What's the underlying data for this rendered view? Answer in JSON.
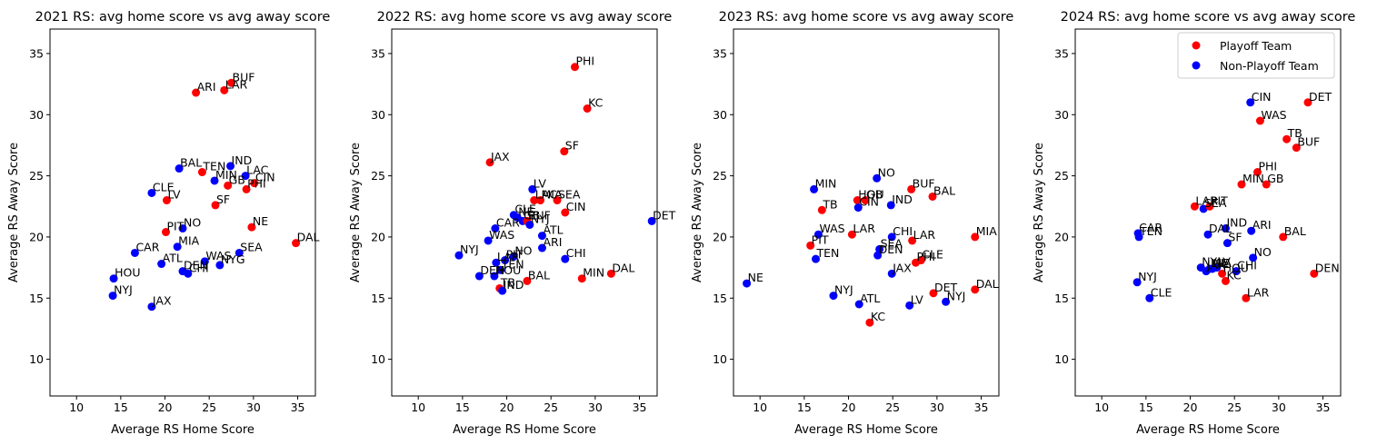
{
  "legend": {
    "playoff_label": "Playoff Team",
    "non_playoff_label": "Non-Playoff Team",
    "playoff_color": "#ff0000",
    "non_playoff_color": "#0000ff",
    "placement": "top-right of 2024 panel"
  },
  "chart_data": [
    {
      "type": "scatter",
      "title": "2021 RS: avg home score vs avg away score",
      "xlabel": "Average RS Home Score",
      "ylabel": "Average RS Away Score",
      "xlim": [
        7,
        37
      ],
      "ylim": [
        7,
        37
      ],
      "xticks": [
        10,
        15,
        20,
        25,
        30,
        35
      ],
      "yticks": [
        10,
        15,
        20,
        25,
        30,
        35
      ],
      "grid": false,
      "points": [
        {
          "team": "BUF",
          "x": 27.5,
          "y": 32.6,
          "playoff": true
        },
        {
          "team": "LAR",
          "x": 26.7,
          "y": 32.0,
          "playoff": true
        },
        {
          "team": "ARI",
          "x": 23.5,
          "y": 31.8,
          "playoff": true
        },
        {
          "team": "IND",
          "x": 27.4,
          "y": 25.8,
          "playoff": false
        },
        {
          "team": "BAL",
          "x": 21.6,
          "y": 25.6,
          "playoff": false
        },
        {
          "team": "TEN",
          "x": 24.2,
          "y": 25.3,
          "playoff": true
        },
        {
          "team": "LAC",
          "x": 29.1,
          "y": 25.0,
          "playoff": false
        },
        {
          "team": "MIN",
          "x": 25.6,
          "y": 24.6,
          "playoff": false
        },
        {
          "team": "CIN",
          "x": 30.1,
          "y": 24.4,
          "playoff": true
        },
        {
          "team": "GB",
          "x": 27.1,
          "y": 24.2,
          "playoff": true
        },
        {
          "team": "PHI",
          "x": 29.2,
          "y": 23.9,
          "playoff": true
        },
        {
          "team": "CLE",
          "x": 18.5,
          "y": 23.6,
          "playoff": false
        },
        {
          "team": "LV",
          "x": 20.2,
          "y": 23.0,
          "playoff": true
        },
        {
          "team": "SF",
          "x": 25.7,
          "y": 22.6,
          "playoff": true
        },
        {
          "team": "NO",
          "x": 22.0,
          "y": 20.7,
          "playoff": false
        },
        {
          "team": "NE",
          "x": 29.8,
          "y": 20.8,
          "playoff": true
        },
        {
          "team": "PIT",
          "x": 20.1,
          "y": 20.4,
          "playoff": true
        },
        {
          "team": "DAL",
          "x": 34.8,
          "y": 19.5,
          "playoff": true
        },
        {
          "team": "MIA",
          "x": 21.4,
          "y": 19.2,
          "playoff": false
        },
        {
          "team": "CAR",
          "x": 16.6,
          "y": 18.7,
          "playoff": false
        },
        {
          "team": "SEA",
          "x": 28.4,
          "y": 18.7,
          "playoff": false
        },
        {
          "team": "WAS",
          "x": 24.5,
          "y": 18.0,
          "playoff": false
        },
        {
          "team": "NYG",
          "x": 26.2,
          "y": 17.7,
          "playoff": false
        },
        {
          "team": "ATL",
          "x": 19.6,
          "y": 17.8,
          "playoff": false
        },
        {
          "team": "DEN",
          "x": 22.0,
          "y": 17.2,
          "playoff": false
        },
        {
          "team": "CHI",
          "x": 22.6,
          "y": 17.0,
          "playoff": false
        },
        {
          "team": "HOU",
          "x": 14.2,
          "y": 16.6,
          "playoff": false
        },
        {
          "team": "NYJ",
          "x": 14.1,
          "y": 15.2,
          "playoff": false
        },
        {
          "team": "JAX",
          "x": 18.5,
          "y": 14.3,
          "playoff": false
        }
      ]
    },
    {
      "type": "scatter",
      "title": "2022 RS: avg home score vs avg away score",
      "xlabel": "Average RS Home Score",
      "ylabel": "Average RS Away Score",
      "xlim": [
        7,
        37
      ],
      "ylim": [
        7,
        37
      ],
      "xticks": [
        10,
        15,
        20,
        25,
        30,
        35
      ],
      "yticks": [
        10,
        15,
        20,
        25,
        30,
        35
      ],
      "grid": false,
      "points": [
        {
          "team": "PHI",
          "x": 27.7,
          "y": 33.9,
          "playoff": true
        },
        {
          "team": "KC",
          "x": 29.1,
          "y": 30.5,
          "playoff": true
        },
        {
          "team": "SF",
          "x": 26.5,
          "y": 27.0,
          "playoff": true
        },
        {
          "team": "JAX",
          "x": 18.1,
          "y": 26.1,
          "playoff": true
        },
        {
          "team": "LV",
          "x": 22.9,
          "y": 23.9,
          "playoff": false
        },
        {
          "team": "LAC",
          "x": 23.1,
          "y": 23.0,
          "playoff": true
        },
        {
          "team": "MIA",
          "x": 23.8,
          "y": 23.0,
          "playoff": true
        },
        {
          "team": "SEA",
          "x": 25.7,
          "y": 23.0,
          "playoff": true
        },
        {
          "team": "CIN",
          "x": 26.6,
          "y": 22.0,
          "playoff": true
        },
        {
          "team": "CLE",
          "x": 20.8,
          "y": 21.8,
          "playoff": false
        },
        {
          "team": "NE",
          "x": 21.2,
          "y": 21.6,
          "playoff": false
        },
        {
          "team": "GB",
          "x": 21.8,
          "y": 21.3,
          "playoff": false
        },
        {
          "team": "BUF",
          "x": 22.3,
          "y": 21.3,
          "playoff": true
        },
        {
          "team": "NYJ",
          "x": 22.6,
          "y": 21.0,
          "playoff": false
        },
        {
          "team": "DET",
          "x": 36.4,
          "y": 21.3,
          "playoff": false
        },
        {
          "team": "CAR",
          "x": 18.7,
          "y": 20.7,
          "playoff": false
        },
        {
          "team": "ATL",
          "x": 24.0,
          "y": 20.1,
          "playoff": false
        },
        {
          "team": "WAS",
          "x": 17.9,
          "y": 19.7,
          "playoff": false
        },
        {
          "team": "ARI",
          "x": 24.0,
          "y": 19.1,
          "playoff": false
        },
        {
          "team": "NYJ",
          "x": 14.6,
          "y": 18.5,
          "playoff": false
        },
        {
          "team": "NO",
          "x": 20.8,
          "y": 18.4,
          "playoff": false
        },
        {
          "team": "PIT",
          "x": 19.8,
          "y": 18.1,
          "playoff": false
        },
        {
          "team": "CHI",
          "x": 26.6,
          "y": 18.2,
          "playoff": false
        },
        {
          "team": "LAR",
          "x": 18.8,
          "y": 17.9,
          "playoff": false
        },
        {
          "team": "TEN",
          "x": 19.3,
          "y": 17.3,
          "playoff": false
        },
        {
          "team": "DEN",
          "x": 16.9,
          "y": 16.8,
          "playoff": false
        },
        {
          "team": "HOU",
          "x": 18.6,
          "y": 16.8,
          "playoff": false
        },
        {
          "team": "DAL",
          "x": 31.8,
          "y": 17.0,
          "playoff": true
        },
        {
          "team": "MIN",
          "x": 28.5,
          "y": 16.6,
          "playoff": true
        },
        {
          "team": "BAL",
          "x": 22.3,
          "y": 16.4,
          "playoff": true
        },
        {
          "team": "TB",
          "x": 19.2,
          "y": 15.8,
          "playoff": true
        },
        {
          "team": "IND",
          "x": 19.5,
          "y": 15.6,
          "playoff": false
        }
      ]
    },
    {
      "type": "scatter",
      "title": "2023 RS: avg home score vs avg away score",
      "xlabel": "Average RS Home Score",
      "ylabel": "Average RS Away Score",
      "xlim": [
        7,
        37
      ],
      "ylim": [
        7,
        37
      ],
      "xticks": [
        10,
        15,
        20,
        25,
        30,
        35
      ],
      "yticks": [
        10,
        15,
        20,
        25,
        30,
        35
      ],
      "grid": false,
      "points": [
        {
          "team": "NO",
          "x": 23.2,
          "y": 24.8,
          "playoff": false
        },
        {
          "team": "MIN",
          "x": 16.1,
          "y": 23.9,
          "playoff": false
        },
        {
          "team": "BUF",
          "x": 27.1,
          "y": 23.9,
          "playoff": true
        },
        {
          "team": "BAL",
          "x": 29.5,
          "y": 23.3,
          "playoff": true
        },
        {
          "team": "HOU",
          "x": 21.0,
          "y": 23.0,
          "playoff": true
        },
        {
          "team": "GB",
          "x": 21.9,
          "y": 23.0,
          "playoff": true
        },
        {
          "team": "CIN",
          "x": 21.1,
          "y": 22.4,
          "playoff": false
        },
        {
          "team": "IND",
          "x": 24.8,
          "y": 22.6,
          "playoff": false
        },
        {
          "team": "TB",
          "x": 17.0,
          "y": 22.2,
          "playoff": true
        },
        {
          "team": "WAS",
          "x": 16.6,
          "y": 20.2,
          "playoff": false
        },
        {
          "team": "LAR",
          "x": 20.4,
          "y": 20.2,
          "playoff": true
        },
        {
          "team": "CHI",
          "x": 24.9,
          "y": 20.0,
          "playoff": false
        },
        {
          "team": "LAR",
          "x": 27.2,
          "y": 19.7,
          "playoff": true
        },
        {
          "team": "MIA",
          "x": 34.3,
          "y": 20.0,
          "playoff": true
        },
        {
          "team": "PIT",
          "x": 15.7,
          "y": 19.3,
          "playoff": true
        },
        {
          "team": "SEA",
          "x": 23.5,
          "y": 19.0,
          "playoff": false
        },
        {
          "team": "TEN",
          "x": 16.3,
          "y": 18.2,
          "playoff": false
        },
        {
          "team": "DEN",
          "x": 23.3,
          "y": 18.5,
          "playoff": false
        },
        {
          "team": "CLE",
          "x": 28.2,
          "y": 18.1,
          "playoff": true
        },
        {
          "team": "PHI",
          "x": 27.6,
          "y": 17.9,
          "playoff": true
        },
        {
          "team": "JAX",
          "x": 24.9,
          "y": 17.0,
          "playoff": false
        },
        {
          "team": "NE",
          "x": 8.5,
          "y": 16.2,
          "playoff": false
        },
        {
          "team": "DET",
          "x": 29.6,
          "y": 15.4,
          "playoff": true
        },
        {
          "team": "DAL",
          "x": 34.3,
          "y": 15.7,
          "playoff": true
        },
        {
          "team": "NYJ",
          "x": 31.0,
          "y": 14.7,
          "playoff": false
        },
        {
          "team": "NYJ",
          "x": 18.3,
          "y": 15.2,
          "playoff": false
        },
        {
          "team": "ATL",
          "x": 21.2,
          "y": 14.5,
          "playoff": false
        },
        {
          "team": "LV",
          "x": 26.9,
          "y": 14.4,
          "playoff": false
        },
        {
          "team": "KC",
          "x": 22.4,
          "y": 13.0,
          "playoff": true
        }
      ]
    },
    {
      "type": "scatter",
      "title": "2024 RS: avg home score vs avg away score",
      "xlabel": "Average RS Home Score",
      "ylabel": "Average RS Away Score",
      "xlim": [
        7,
        37
      ],
      "ylim": [
        7,
        37
      ],
      "xticks": [
        10,
        15,
        20,
        25,
        30,
        35
      ],
      "yticks": [
        10,
        15,
        20,
        25,
        30,
        35
      ],
      "grid": false,
      "points": [
        {
          "team": "CIN",
          "x": 26.8,
          "y": 31.0,
          "playoff": false
        },
        {
          "team": "DET",
          "x": 33.3,
          "y": 31.0,
          "playoff": true
        },
        {
          "team": "WAS",
          "x": 27.9,
          "y": 29.5,
          "playoff": true
        },
        {
          "team": "TB",
          "x": 30.9,
          "y": 28.0,
          "playoff": true
        },
        {
          "team": "BUF",
          "x": 32.0,
          "y": 27.3,
          "playoff": true
        },
        {
          "team": "PHI",
          "x": 27.6,
          "y": 25.3,
          "playoff": true
        },
        {
          "team": "MIN",
          "x": 25.8,
          "y": 24.3,
          "playoff": true
        },
        {
          "team": "GB",
          "x": 28.6,
          "y": 24.3,
          "playoff": true
        },
        {
          "team": "LAR",
          "x": 20.5,
          "y": 22.5,
          "playoff": true
        },
        {
          "team": "SEA",
          "x": 21.5,
          "y": 22.3,
          "playoff": false
        },
        {
          "team": "PIT",
          "x": 22.2,
          "y": 22.5,
          "playoff": true
        },
        {
          "team": "IND",
          "x": 24.0,
          "y": 20.7,
          "playoff": false
        },
        {
          "team": "ARI",
          "x": 26.9,
          "y": 20.5,
          "playoff": false
        },
        {
          "team": "CAR",
          "x": 14.1,
          "y": 20.3,
          "playoff": false
        },
        {
          "team": "TEN",
          "x": 14.2,
          "y": 20.0,
          "playoff": false
        },
        {
          "team": "DAL",
          "x": 22.0,
          "y": 20.2,
          "playoff": false
        },
        {
          "team": "BAL",
          "x": 30.5,
          "y": 20.0,
          "playoff": true
        },
        {
          "team": "SF",
          "x": 24.2,
          "y": 19.5,
          "playoff": false
        },
        {
          "team": "NO",
          "x": 27.1,
          "y": 18.3,
          "playoff": false
        },
        {
          "team": "NYJ",
          "x": 21.2,
          "y": 17.5,
          "playoff": false
        },
        {
          "team": "MIA",
          "x": 22.2,
          "y": 17.4,
          "playoff": false
        },
        {
          "team": "JAX",
          "x": 21.8,
          "y": 17.2,
          "playoff": false
        },
        {
          "team": "LV",
          "x": 23.0,
          "y": 17.5,
          "playoff": false
        },
        {
          "team": "CHI",
          "x": 25.2,
          "y": 17.2,
          "playoff": false
        },
        {
          "team": "HOU",
          "x": 23.6,
          "y": 17.0,
          "playoff": true
        },
        {
          "team": "NE",
          "x": 22.5,
          "y": 17.4,
          "playoff": false
        },
        {
          "team": "KC",
          "x": 24.0,
          "y": 16.4,
          "playoff": true
        },
        {
          "team": "DEN",
          "x": 34.0,
          "y": 17.0,
          "playoff": true
        },
        {
          "team": "NYJ",
          "x": 14.0,
          "y": 16.3,
          "playoff": false
        },
        {
          "team": "CLE",
          "x": 15.4,
          "y": 15.0,
          "playoff": false
        },
        {
          "team": "LAR",
          "x": 26.3,
          "y": 15.0,
          "playoff": true
        }
      ]
    }
  ]
}
